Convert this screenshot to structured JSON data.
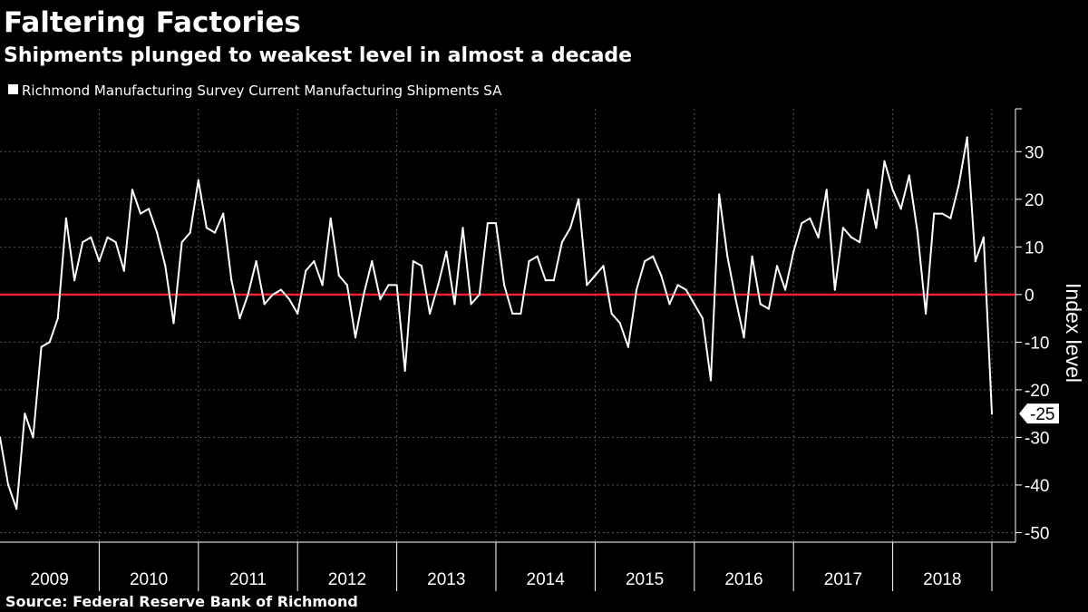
{
  "title": "Faltering Factories",
  "subtitle": "Shipments plunged to weakest level in almost a decade",
  "source": "Source: Federal Reserve Bank of Richmond",
  "colors": {
    "background": "#000000",
    "series": "#ffffff",
    "zero_line": "#ff1e37",
    "grid": "#555555"
  },
  "chart_data": {
    "type": "line",
    "ylabel": "Index level",
    "ylim": [
      -52,
      39
    ],
    "y_ticks": [
      30,
      20,
      10,
      0,
      -10,
      -20,
      -30,
      -40,
      -50
    ],
    "x_year_labels": [
      "2009",
      "2010",
      "2011",
      "2012",
      "2013",
      "2014",
      "2015",
      "2016",
      "2017",
      "2018"
    ],
    "grid": true,
    "legend_position": "top-left",
    "reference_line": 0,
    "end_label": "-25",
    "series": [
      {
        "name": "Richmond Manufacturing Survey Current Manufacturing Shipments SA",
        "start": "2009-01",
        "frequency": "monthly",
        "values": [
          -30,
          -40,
          -45,
          -25,
          -30,
          -11,
          -10,
          -5,
          16,
          3,
          11,
          12,
          7,
          12,
          11,
          5,
          22,
          17,
          18,
          13,
          6,
          -6,
          11,
          13,
          24,
          14,
          13,
          17,
          3,
          -5,
          0,
          7,
          -2,
          0,
          1,
          -1,
          -4,
          5,
          7,
          2,
          16,
          4,
          2,
          -9,
          0,
          7,
          -1,
          2,
          2,
          -16,
          7,
          6,
          -4,
          2,
          9,
          -2,
          14,
          -2,
          0,
          15,
          15,
          2,
          -4,
          -4,
          7,
          8,
          3,
          3,
          11,
          14,
          20,
          2,
          4,
          6,
          -4,
          -6,
          -11,
          1,
          7,
          8,
          4,
          -2,
          2,
          1,
          -2,
          -5,
          -18,
          21,
          8,
          -1,
          -9,
          8,
          -2,
          -3,
          6,
          1,
          9,
          15,
          16,
          12,
          22,
          1,
          14,
          12,
          11,
          22,
          14,
          28,
          22,
          18,
          25,
          13,
          -4,
          17,
          17,
          16,
          23,
          33,
          7,
          12,
          -25
        ]
      }
    ]
  }
}
